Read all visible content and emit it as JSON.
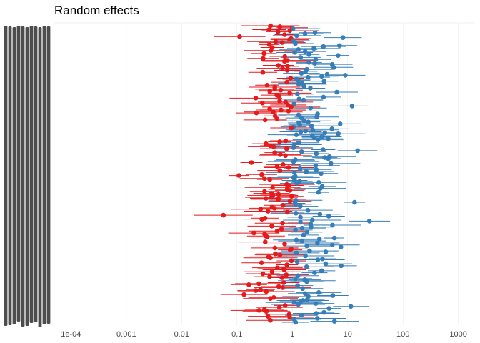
{
  "chart_data": {
    "type": "scatter",
    "title": "Random effects",
    "x_scale": "log10",
    "xlim": [
      5e-05,
      2000
    ],
    "x_ticks": [
      "1e-04",
      "0.001",
      "0.01",
      "0.1",
      "1",
      "10",
      "100",
      "1000"
    ],
    "x_tick_values": [
      0.0001,
      0.001,
      0.01,
      0.1,
      1,
      10,
      100,
      1000
    ],
    "grid": "x-major",
    "legend": "none",
    "y_tick_labels": "overlapping, illegible",
    "n_levels": 300,
    "colors": {
      "below_1": "#e41a1c",
      "above_1": "#377eb8",
      "text": "#4d4d4d",
      "grid": "#ebebeb"
    },
    "series": [
      {
        "group": "below_1",
        "color": "#e41a1c"
      },
      {
        "group": "above_1",
        "color": "#377eb8"
      }
    ]
  }
}
